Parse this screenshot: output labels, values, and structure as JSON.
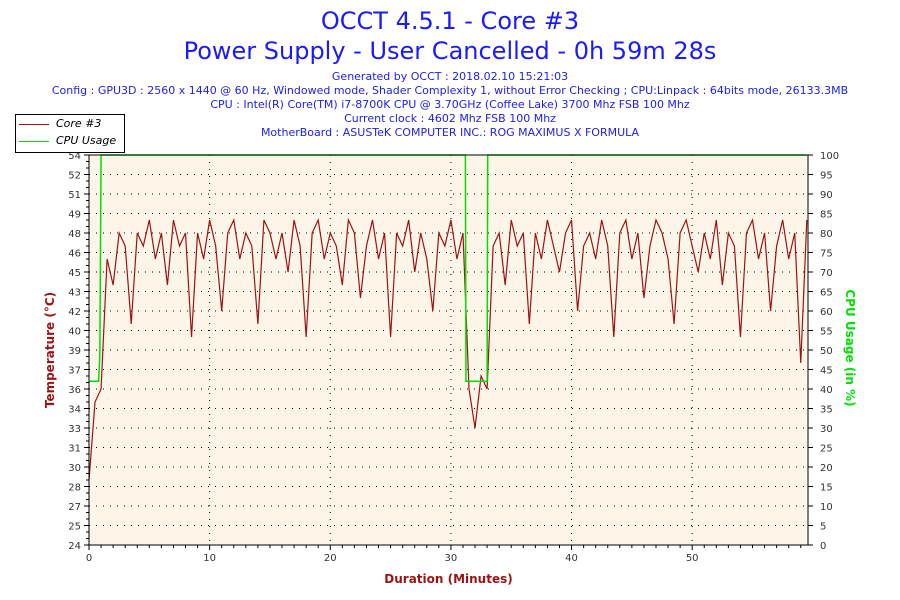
{
  "header": {
    "title": "OCCT 4.5.1 - Core #3",
    "subtitle": "Power Supply - User Cancelled - 0h 59m 28s",
    "generated": "Generated by OCCT : 2018.02.10 15:21:03",
    "config": "Config : GPU3D : 2560 x 1440 @ 60 Hz, Windowed mode, Shader Complexity 1, without Error Checking ; CPU:Linpack : 64bits mode, 26133.3MB",
    "cpu": "CPU : Intel(R) Core(TM) i7-8700K CPU @ 3.70GHz (Coffee Lake) 3700 Mhz FSB 100 Mhz",
    "clock": "Current clock : 4602 Mhz FSB 100 Mhz",
    "motherboard": "MotherBoard : ASUSTeK COMPUTER INC.: ROG MAXIMUS X FORMULA"
  },
  "colors": {
    "temp": "#9b1414",
    "cpu": "#00e000",
    "plot_bg": "#fdf5e8",
    "title": "#1a1aff"
  },
  "chart_data": {
    "type": "line",
    "title": "OCCT 4.5.1 - Core #3",
    "xlabel": "Duration (Minutes)",
    "ylabel": "Temperature (°C)",
    "y2label": "CPU Usage (in %)",
    "xlim": [
      0,
      59.6
    ],
    "ylim": [
      24,
      54
    ],
    "y2lim": [
      0,
      100
    ],
    "grid": true,
    "legend_position": "top-left",
    "x_ticks": [
      0,
      10,
      20,
      30,
      40,
      50
    ],
    "y_tick_labels": [
      "24",
      "25",
      "27",
      "28",
      "30",
      "31",
      "33",
      "34",
      "36",
      "37",
      "39",
      "40",
      "42",
      "43",
      "45",
      "46",
      "48",
      "49",
      "51",
      "52",
      "54"
    ],
    "y2_tick_labels": [
      "0",
      "5",
      "10",
      "15",
      "20",
      "25",
      "30",
      "35",
      "40",
      "45",
      "50",
      "55",
      "60",
      "65",
      "70",
      "75",
      "80",
      "85",
      "90",
      "95",
      "100"
    ],
    "series": [
      {
        "name": "Core #3",
        "axis": "left",
        "x_step": 0.5,
        "values": [
          29,
          35,
          36,
          46,
          44,
          48,
          47,
          41,
          48,
          47,
          49,
          46,
          48,
          44,
          49,
          47,
          48,
          40,
          48,
          46,
          49,
          47,
          42,
          48,
          49,
          46,
          48,
          47,
          41,
          49,
          48,
          46,
          48,
          45,
          49,
          47,
          40,
          48,
          49,
          46,
          48,
          47,
          44,
          49,
          48,
          43,
          47,
          49,
          46,
          48,
          40,
          48,
          47,
          49,
          45,
          48,
          46,
          42,
          48,
          47,
          49,
          46,
          48,
          36,
          33,
          37,
          36,
          47,
          48,
          44,
          49,
          47,
          48,
          41,
          48,
          46,
          49,
          47,
          45,
          48,
          49,
          42,
          47,
          48,
          46,
          49,
          47,
          40,
          48,
          49,
          46,
          48,
          43,
          47,
          49,
          48,
          46,
          41,
          48,
          49,
          47,
          45,
          48,
          46,
          49,
          44,
          48,
          47,
          40,
          48,
          49,
          46,
          48,
          42,
          47,
          49,
          46,
          48,
          38,
          49
        ]
      },
      {
        "name": "CPU Usage",
        "axis": "right",
        "x": [
          0,
          0.8,
          0.9,
          1.0,
          31.2,
          31.25,
          33.0,
          33.05,
          59.5
        ],
        "values": [
          42,
          42,
          49,
          100,
          100,
          42,
          42,
          100,
          100
        ]
      }
    ]
  }
}
